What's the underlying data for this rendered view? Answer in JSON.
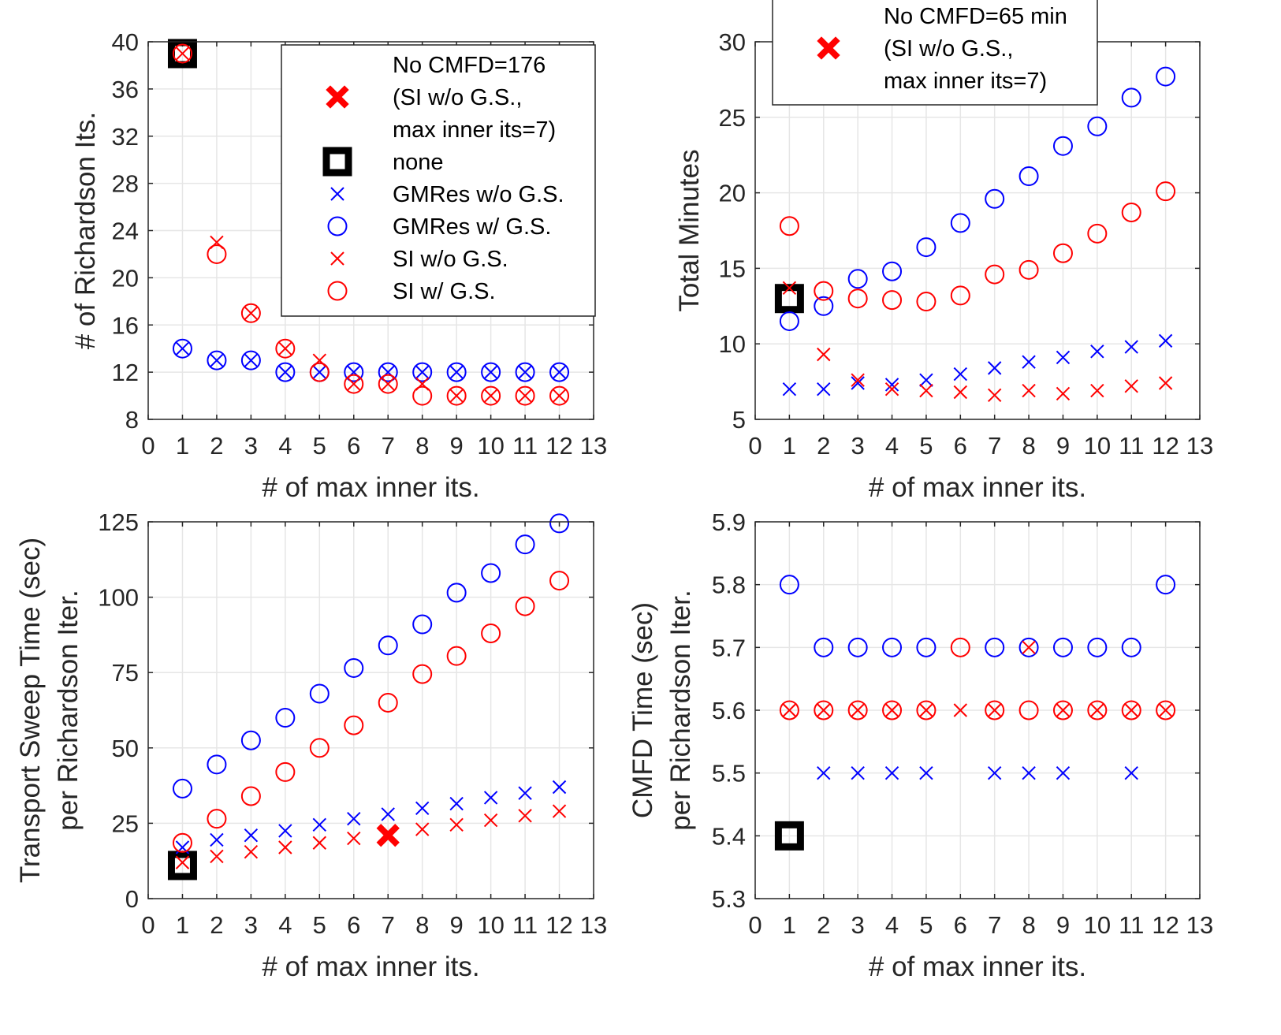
{
  "colors": {
    "blue": "#0000ff",
    "red": "#ff0000",
    "black": "#000000",
    "grid": "#e6e6e6",
    "axis": "#262626"
  },
  "chart_data": [
    {
      "type": "scatter",
      "id": "p1",
      "xlabel": "# of max inner its.",
      "ylabel": [
        "# of Richardson Its."
      ],
      "xlim": [
        0,
        13
      ],
      "ylim": [
        8,
        40
      ],
      "xticks": [
        0,
        1,
        2,
        3,
        4,
        5,
        6,
        7,
        8,
        9,
        10,
        11,
        12,
        13
      ],
      "yticks": [
        8,
        12,
        16,
        20,
        24,
        28,
        32,
        36,
        40
      ],
      "series": [
        {
          "name": "none",
          "marker": "square",
          "x": [
            1
          ],
          "y": [
            39
          ]
        },
        {
          "name": "GMRes w/o G.S.",
          "marker": "x",
          "color": "blue",
          "x": [
            1,
            2,
            3,
            4,
            5,
            6,
            7,
            8,
            9,
            10,
            11,
            12
          ],
          "y": [
            14,
            13,
            13,
            12,
            12,
            12,
            12,
            12,
            12,
            12,
            12,
            12
          ]
        },
        {
          "name": "GMRes w/ G.S.",
          "marker": "o",
          "color": "blue",
          "x": [
            1,
            2,
            3,
            4,
            5,
            6,
            7,
            8,
            9,
            10,
            11,
            12
          ],
          "y": [
            14,
            13,
            13,
            12,
            12,
            12,
            12,
            12,
            12,
            12,
            12,
            12
          ]
        },
        {
          "name": "SI w/o G.S.",
          "marker": "x",
          "color": "red",
          "x": [
            1,
            2,
            3,
            4,
            5,
            6,
            7,
            8,
            9,
            10,
            11,
            12
          ],
          "y": [
            39,
            23,
            17,
            14,
            13,
            11,
            11,
            11,
            10,
            10,
            10,
            10
          ]
        },
        {
          "name": "SI w/ G.S.",
          "marker": "o",
          "color": "red",
          "x": [
            1,
            2,
            3,
            4,
            5,
            6,
            7,
            8,
            9,
            10,
            11,
            12
          ],
          "y": [
            39,
            22,
            17,
            14,
            12,
            11,
            11,
            10,
            10,
            10,
            10,
            10
          ]
        }
      ],
      "legend": {
        "position": "top-right",
        "entries": [
          {
            "marker": "bigx",
            "color": "red",
            "lines": [
              "No CMFD=176",
              "(SI w/o G.S.,",
              " max inner its=7)"
            ]
          },
          {
            "marker": "square",
            "color": "black",
            "lines": [
              "none"
            ]
          },
          {
            "marker": "x",
            "color": "blue",
            "lines": [
              "GMRes w/o G.S."
            ]
          },
          {
            "marker": "o",
            "color": "blue",
            "lines": [
              "GMRes w/ G.S."
            ]
          },
          {
            "marker": "x",
            "color": "red",
            "lines": [
              "SI w/o G.S."
            ]
          },
          {
            "marker": "o",
            "color": "red",
            "lines": [
              "SI w/ G.S."
            ]
          }
        ]
      }
    },
    {
      "type": "scatter",
      "id": "p2",
      "xlabel": "# of max inner its.",
      "ylabel": [
        "Total Minutes"
      ],
      "xlim": [
        0,
        13
      ],
      "ylim": [
        5,
        30
      ],
      "xticks": [
        0,
        1,
        2,
        3,
        4,
        5,
        6,
        7,
        8,
        9,
        10,
        11,
        12,
        13
      ],
      "yticks": [
        5,
        10,
        15,
        20,
        25,
        30
      ],
      "series": [
        {
          "name": "none",
          "marker": "square",
          "x": [
            1
          ],
          "y": [
            13
          ]
        },
        {
          "name": "GMRes w/o G.S.",
          "marker": "x",
          "color": "blue",
          "x": [
            1,
            2,
            3,
            4,
            5,
            6,
            7,
            8,
            9,
            10,
            11,
            12
          ],
          "y": [
            7.0,
            7.0,
            7.4,
            7.3,
            7.6,
            8.0,
            8.4,
            8.8,
            9.1,
            9.5,
            9.8,
            10.2
          ]
        },
        {
          "name": "GMRes w/ G.S.",
          "marker": "o",
          "color": "blue",
          "x": [
            1,
            2,
            3,
            4,
            5,
            6,
            7,
            8,
            9,
            10,
            11,
            12
          ],
          "y": [
            11.5,
            12.5,
            14.3,
            14.8,
            16.4,
            18.0,
            19.6,
            21.1,
            23.1,
            24.4,
            26.3,
            27.7
          ]
        },
        {
          "name": "SI w/o G.S.",
          "marker": "x",
          "color": "red",
          "x": [
            1,
            2,
            3,
            4,
            5,
            6,
            7,
            8,
            9,
            10,
            11,
            12
          ],
          "y": [
            13.7,
            9.3,
            7.6,
            7.0,
            6.9,
            6.8,
            6.6,
            6.9,
            6.7,
            6.9,
            7.2,
            7.4
          ]
        },
        {
          "name": "SI w/ G.S.",
          "marker": "o",
          "color": "red",
          "x": [
            1,
            2,
            3,
            4,
            5,
            6,
            7,
            8,
            9,
            10,
            11,
            12
          ],
          "y": [
            17.8,
            13.5,
            13.0,
            12.9,
            12.8,
            13.2,
            14.6,
            14.9,
            16.0,
            17.3,
            18.7,
            20.1
          ]
        }
      ],
      "legend": {
        "position": "top-center",
        "entries": [
          {
            "marker": "bigx",
            "color": "red",
            "lines": [
              "No CMFD=65 min",
              "(SI w/o G.S.,",
              " max inner its=7)"
            ]
          }
        ]
      }
    },
    {
      "type": "scatter",
      "id": "p3",
      "xlabel": "# of max inner its.",
      "ylabel": [
        "Transport Sweep Time (sec)",
        "per Richardson Iter."
      ],
      "xlim": [
        0,
        13
      ],
      "ylim": [
        0,
        125
      ],
      "xticks": [
        0,
        1,
        2,
        3,
        4,
        5,
        6,
        7,
        8,
        9,
        10,
        11,
        12,
        13
      ],
      "yticks": [
        0,
        25,
        50,
        75,
        100,
        125
      ],
      "series": [
        {
          "name": "none",
          "marker": "square",
          "x": [
            1
          ],
          "y": [
            11
          ]
        },
        {
          "name": "GMRes w/o G.S.",
          "marker": "x",
          "color": "blue",
          "x": [
            1,
            2,
            3,
            4,
            5,
            6,
            7,
            8,
            9,
            10,
            11,
            12
          ],
          "y": [
            17,
            19.5,
            21,
            22.5,
            24.5,
            26.5,
            28,
            30,
            31.5,
            33.5,
            35,
            37
          ]
        },
        {
          "name": "GMRes w/ G.S.",
          "marker": "o",
          "color": "blue",
          "x": [
            1,
            2,
            3,
            4,
            5,
            6,
            7,
            8,
            9,
            10,
            11,
            12
          ],
          "y": [
            36.5,
            44.5,
            52.5,
            60,
            68,
            76.5,
            84,
            91,
            101.5,
            108,
            117.5,
            124.5
          ]
        },
        {
          "name": "SI w/o G.S.",
          "marker": "x",
          "color": "red",
          "x": [
            1,
            2,
            3,
            4,
            5,
            6,
            7,
            8,
            9,
            10,
            11,
            12
          ],
          "y": [
            12,
            14,
            15.5,
            17,
            18.5,
            20,
            21.5,
            23,
            24.5,
            26,
            27.5,
            29
          ]
        },
        {
          "name": "SI w/ G.S.",
          "marker": "o",
          "color": "red",
          "x": [
            1,
            2,
            3,
            4,
            5,
            6,
            7,
            8,
            9,
            10,
            11,
            12
          ],
          "y": [
            18.5,
            26.5,
            34,
            42,
            50,
            57.5,
            65,
            74.5,
            80.5,
            88,
            97,
            105.5
          ]
        },
        {
          "name": "No CMFD",
          "marker": "bigx",
          "color": "red",
          "x": [
            7
          ],
          "y": [
            21
          ]
        }
      ]
    },
    {
      "type": "scatter",
      "id": "p4",
      "xlabel": "# of max inner its.",
      "ylabel": [
        "CMFD Time (sec)",
        "per Richardson Iter."
      ],
      "xlim": [
        0,
        13
      ],
      "ylim": [
        5.3,
        5.9
      ],
      "xticks": [
        0,
        1,
        2,
        3,
        4,
        5,
        6,
        7,
        8,
        9,
        10,
        11,
        12,
        13
      ],
      "yticks": [
        5.3,
        5.4,
        5.5,
        5.6,
        5.7,
        5.8,
        5.9
      ],
      "series": [
        {
          "name": "none",
          "marker": "square",
          "x": [
            1
          ],
          "y": [
            5.4
          ]
        },
        {
          "name": "GMRes w/o G.S.",
          "marker": "x",
          "color": "blue",
          "x": [
            2,
            3,
            4,
            5,
            7,
            8,
            9,
            11
          ],
          "y": [
            5.5,
            5.5,
            5.5,
            5.5,
            5.5,
            5.5,
            5.5,
            5.5
          ]
        },
        {
          "name": "GMRes w/ G.S.",
          "marker": "o",
          "color": "blue",
          "x": [
            1,
            2,
            3,
            4,
            5,
            7,
            8,
            9,
            10,
            11,
            12
          ],
          "y": [
            5.8,
            5.7,
            5.7,
            5.7,
            5.7,
            5.7,
            5.7,
            5.7,
            5.7,
            5.7,
            5.8
          ]
        },
        {
          "name": "SI w/o G.S.",
          "marker": "x",
          "color": "red",
          "x": [
            1,
            2,
            3,
            4,
            5,
            6,
            7,
            8,
            9,
            10,
            11,
            12
          ],
          "y": [
            5.6,
            5.6,
            5.6,
            5.6,
            5.6,
            5.6,
            5.6,
            5.7,
            5.6,
            5.6,
            5.6,
            5.6
          ]
        },
        {
          "name": "SI w/ G.S.",
          "marker": "o",
          "color": "red",
          "x": [
            1,
            2,
            3,
            4,
            5,
            6,
            7,
            8,
            9,
            10,
            11,
            12
          ],
          "y": [
            5.6,
            5.6,
            5.6,
            5.6,
            5.6,
            5.7,
            5.6,
            5.6,
            5.6,
            5.6,
            5.6,
            5.6
          ]
        }
      ]
    }
  ]
}
